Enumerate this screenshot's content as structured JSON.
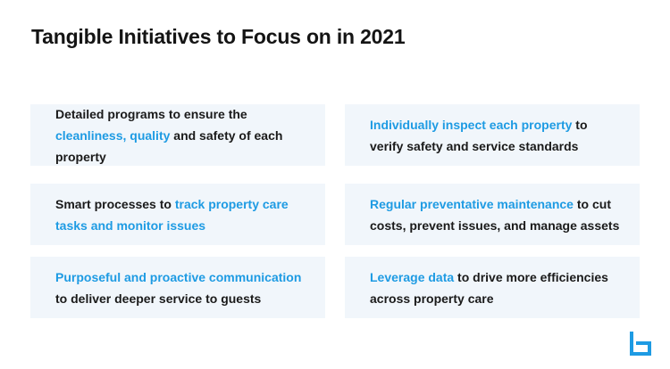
{
  "title": "Tangible Initiatives to Focus on in 2021",
  "colors": {
    "accent": "#1e9be3",
    "card_background": "#f1f6fb",
    "text": "#1a1a1a"
  },
  "initiatives": [
    {
      "pre": "Detailed programs to ensure the ",
      "highlight": "cleanliness, quality",
      "post": " and safety of each property"
    },
    {
      "pre": "",
      "highlight": "Individually inspect each property",
      "post": " to verify safety and service standards"
    },
    {
      "pre": "Smart processes to ",
      "highlight": "track property care tasks and monitor issues",
      "post": ""
    },
    {
      "pre": "",
      "highlight": "Regular preventative maintenance",
      "post": " to cut costs, prevent issues, and manage assets"
    },
    {
      "pre": "",
      "highlight": "Purposeful and proactive communication",
      "post": " to deliver deeper service to guests"
    },
    {
      "pre": "",
      "highlight": "Leverage data",
      "post": " to drive more efficiencies across property care"
    }
  ],
  "logo_icon": "b-logo-icon"
}
